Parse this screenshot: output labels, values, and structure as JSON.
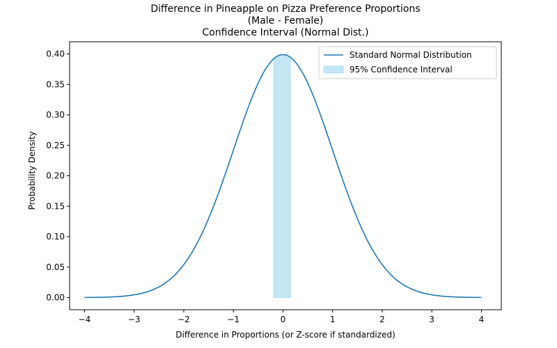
{
  "chart_data": {
    "type": "line",
    "title_lines": [
      "Difference in Pineapple on Pizza Preference Proportions",
      "(Male - Female)",
      "Confidence Interval (Normal Dist.)"
    ],
    "xlabel": "Difference in Proportions (or Z-score if standardized)",
    "ylabel": "Probability Density",
    "xlim": [
      -4.3,
      4.4
    ],
    "ylim": [
      -0.02,
      0.42
    ],
    "xticks": [
      -4,
      -3,
      -2,
      -1,
      0,
      1,
      2,
      3,
      4
    ],
    "xtick_labels": [
      "−4",
      "−3",
      "−2",
      "−1",
      "0",
      "1",
      "2",
      "3",
      "4"
    ],
    "yticks": [
      0.0,
      0.05,
      0.1,
      0.15,
      0.2,
      0.25,
      0.3,
      0.35,
      0.4
    ],
    "ytick_labels": [
      "0.00",
      "0.05",
      "0.10",
      "0.15",
      "0.20",
      "0.25",
      "0.30",
      "0.35",
      "0.40"
    ],
    "grid": false,
    "legend_position": "top-right",
    "series": [
      {
        "name": "Standard Normal Distribution",
        "kind": "line",
        "function": "standard-normal-pdf",
        "x_range": [
          -4,
          4
        ],
        "color": "#1f77b4"
      },
      {
        "name": "95% Confidence Interval",
        "kind": "area",
        "x_range": [
          -0.19,
          0.15
        ],
        "color": "#87ceeb"
      }
    ]
  }
}
